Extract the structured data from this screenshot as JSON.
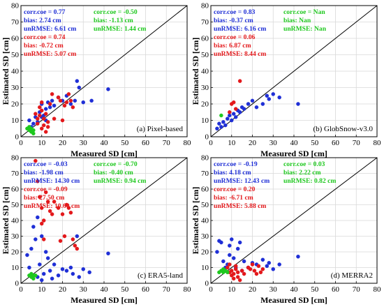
{
  "colors": {
    "blue": "#1f2fd6",
    "red": "#e3181b",
    "green": "#1ec81e",
    "frame": "#000000",
    "grid": "#d9d9d9"
  },
  "chart_data": [
    {
      "type": "scatter",
      "panel_label": "(a) Pixel-based",
      "xlabel": "Measured SD [cm]",
      "ylabel": "Estimated SD [cm]",
      "xlim": [
        0,
        80
      ],
      "ylim": [
        0,
        80
      ],
      "ticks": [
        "0",
        "10",
        "20",
        "30",
        "40",
        "50",
        "60",
        "70",
        "80"
      ],
      "grid": true,
      "one_to_one_line": true,
      "stats": {
        "blue": [
          "corr.coe = 0.77",
          "bias: 2.74 cm",
          "unRMSE: 6.61 cm"
        ],
        "green": [
          "corr.coe = -0.50",
          "bias: -1.13 cm",
          "unRMSE: 1.44 cm"
        ],
        "red": [
          "corr.coe = 0.74",
          "bias: -0.72 cm",
          "unRMSE: 5.07 cm"
        ]
      },
      "series": [
        {
          "color": "blue",
          "points": [
            [
              4,
              10
            ],
            [
              5,
              6
            ],
            [
              6,
              8
            ],
            [
              7,
              12
            ],
            [
              8,
              9
            ],
            [
              9,
              15
            ],
            [
              10,
              20
            ],
            [
              11,
              13
            ],
            [
              12,
              17
            ],
            [
              13,
              21
            ],
            [
              14,
              18
            ],
            [
              15,
              22
            ],
            [
              16,
              19
            ],
            [
              18,
              24
            ],
            [
              20,
              22
            ],
            [
              22,
              25
            ],
            [
              24,
              20
            ],
            [
              26,
              22
            ],
            [
              27,
              34
            ],
            [
              28,
              30
            ],
            [
              30,
              21
            ],
            [
              34,
              22
            ],
            [
              42,
              29
            ],
            [
              12,
              10
            ],
            [
              10,
              12
            ]
          ]
        },
        {
          "color": "red",
          "points": [
            [
              7,
              14
            ],
            [
              8,
              8
            ],
            [
              9,
              13
            ],
            [
              9,
              18
            ],
            [
              10,
              5
            ],
            [
              10,
              16
            ],
            [
              11,
              7
            ],
            [
              11,
              11
            ],
            [
              12,
              14
            ],
            [
              12,
              3
            ],
            [
              13,
              6
            ],
            [
              13,
              9
            ],
            [
              14,
              20
            ],
            [
              15,
              26
            ],
            [
              16,
              11
            ],
            [
              18,
              24
            ],
            [
              19,
              22
            ],
            [
              20,
              10
            ],
            [
              21,
              19
            ],
            [
              22,
              21
            ],
            [
              23,
              26
            ],
            [
              24,
              22
            ],
            [
              25,
              18
            ],
            [
              10,
              21
            ],
            [
              8,
              11
            ]
          ]
        },
        {
          "color": "green",
          "points": [
            [
              3,
              5
            ],
            [
              4,
              4
            ],
            [
              5,
              3
            ],
            [
              5,
              5
            ],
            [
              6,
              4
            ],
            [
              6,
              2
            ],
            [
              4,
              6
            ]
          ]
        }
      ]
    },
    {
      "type": "scatter",
      "panel_label": "(b) GlobSnow-v3.0",
      "xlabel": "Measured SD [cm]",
      "ylabel": "Estimated SD [cm]",
      "xlim": [
        0,
        80
      ],
      "ylim": [
        0,
        80
      ],
      "ticks": [
        "0",
        "10",
        "20",
        "30",
        "40",
        "50",
        "60",
        "70",
        "80"
      ],
      "grid": true,
      "one_to_one_line": true,
      "stats": {
        "blue": [
          "corr.coe = 0.83",
          "bias: -0.37 cm",
          "unRMSE: 6.16 cm"
        ],
        "green": [
          "corr.coe = Nan",
          "bias: Nan",
          "unRMSE: Nan"
        ],
        "red": [
          "corr.coe = 0.06",
          "bias: 6.87 cm",
          "unRMSE: 8.44 cm"
        ]
      },
      "series": [
        {
          "color": "blue",
          "points": [
            [
              3,
              5
            ],
            [
              4,
              8
            ],
            [
              6,
              9
            ],
            [
              7,
              7
            ],
            [
              8,
              11
            ],
            [
              9,
              13
            ],
            [
              10,
              10
            ],
            [
              11,
              14
            ],
            [
              12,
              12
            ],
            [
              13,
              16
            ],
            [
              14,
              15
            ],
            [
              15,
              18
            ],
            [
              16,
              17
            ],
            [
              18,
              20
            ],
            [
              20,
              22
            ],
            [
              22,
              18
            ],
            [
              25,
              20
            ],
            [
              27,
              25
            ],
            [
              28,
              23
            ],
            [
              30,
              26
            ],
            [
              33,
              24
            ],
            [
              42,
              20
            ],
            [
              5,
              6
            ]
          ]
        },
        {
          "color": "red",
          "points": [
            [
              9,
              15
            ],
            [
              10,
              20
            ],
            [
              11,
              21
            ],
            [
              12,
              17
            ],
            [
              14,
              34
            ]
          ]
        },
        {
          "color": "green",
          "points": [
            [
              5,
              13
            ]
          ]
        }
      ]
    },
    {
      "type": "scatter",
      "panel_label": "(c) ERA5-land",
      "xlabel": "Measured SD [cm]",
      "ylabel": "Estimated SD [cm]",
      "xlim": [
        0,
        80
      ],
      "ylim": [
        0,
        80
      ],
      "ticks": [
        "0",
        "10",
        "20",
        "30",
        "40",
        "50",
        "60",
        "70",
        "80"
      ],
      "grid": true,
      "one_to_one_line": true,
      "stats": {
        "blue": [
          "corr.coe = -0.03",
          "bias: -1.98 cm",
          "unRMSE: 14.30 cm"
        ],
        "green": [
          "corr.coe = -0.70",
          "bias: -0.40 cm",
          "unRMSE: 0.94 cm"
        ],
        "red": [
          "corr.coe = -0.09",
          "bias: 27.50 cm",
          "unRMSE: 10.60 cm"
        ]
      },
      "series": [
        {
          "color": "blue",
          "points": [
            [
              3,
              18
            ],
            [
              4,
              10
            ],
            [
              5,
              22
            ],
            [
              6,
              36
            ],
            [
              7,
              28
            ],
            [
              8,
              4
            ],
            [
              9,
              12
            ],
            [
              10,
              2
            ],
            [
              11,
              6
            ],
            [
              12,
              20
            ],
            [
              13,
              16
            ],
            [
              14,
              8
            ],
            [
              15,
              3
            ],
            [
              16,
              12
            ],
            [
              18,
              5
            ],
            [
              20,
              9
            ],
            [
              22,
              8
            ],
            [
              24,
              10
            ],
            [
              25,
              6
            ],
            [
              27,
              30
            ],
            [
              28,
              4
            ],
            [
              30,
              9
            ],
            [
              33,
              7
            ],
            [
              42,
              19
            ],
            [
              8,
              42
            ],
            [
              10,
              30
            ]
          ]
        },
        {
          "color": "red",
          "points": [
            [
              7,
              78
            ],
            [
              8,
              65
            ],
            [
              9,
              55
            ],
            [
              10,
              48
            ],
            [
              10,
              38
            ],
            [
              11,
              40
            ],
            [
              12,
              58
            ],
            [
              13,
              52
            ],
            [
              14,
              46
            ],
            [
              15,
              44
            ],
            [
              16,
              52
            ],
            [
              18,
              48
            ],
            [
              19,
              27
            ],
            [
              20,
              44
            ],
            [
              21,
              30
            ],
            [
              22,
              50
            ],
            [
              23,
              48
            ],
            [
              24,
              45
            ],
            [
              25,
              28
            ],
            [
              26,
              24
            ],
            [
              27,
              22
            ],
            [
              11,
              28
            ]
          ]
        },
        {
          "color": "green",
          "points": [
            [
              4,
              5
            ],
            [
              5,
              4
            ],
            [
              6,
              3
            ],
            [
              6,
              5
            ],
            [
              7,
              5
            ],
            [
              5,
              6
            ]
          ]
        }
      ]
    },
    {
      "type": "scatter",
      "panel_label": "(d) MERRA2",
      "xlabel": "Measured SD [cm]",
      "ylabel": "Estimated SD [cm]",
      "xlim": [
        0,
        80
      ],
      "ylim": [
        0,
        80
      ],
      "ticks": [
        "0",
        "10",
        "20",
        "30",
        "40",
        "50",
        "60",
        "70",
        "80"
      ],
      "grid": true,
      "one_to_one_line": true,
      "stats": {
        "blue": [
          "corr.coe = -0.19",
          "bias: 4.18 cm",
          "unRMSE: 12.43 cm"
        ],
        "green": [
          "corr.coe = 0.03",
          "bias: 2.22 cm",
          "unRMSE: 0.82 cm"
        ],
        "red": [
          "corr.coe = 0.20",
          "bias: -6.71 cm",
          "unRMSE: 5.88 cm"
        ]
      },
      "series": [
        {
          "color": "blue",
          "points": [
            [
              3,
              20
            ],
            [
              4,
              27
            ],
            [
              5,
              26
            ],
            [
              6,
              14
            ],
            [
              7,
              10
            ],
            [
              8,
              12
            ],
            [
              9,
              18
            ],
            [
              10,
              28
            ],
            [
              11,
              16
            ],
            [
              12,
              10
            ],
            [
              13,
              22
            ],
            [
              14,
              26
            ],
            [
              15,
              8
            ],
            [
              16,
              14
            ],
            [
              18,
              10
            ],
            [
              20,
              13
            ],
            [
              22,
              12
            ],
            [
              25,
              15
            ],
            [
              27,
              11
            ],
            [
              28,
              13
            ],
            [
              30,
              9
            ],
            [
              33,
              12
            ],
            [
              42,
              17
            ],
            [
              9,
              24
            ]
          ]
        },
        {
          "color": "red",
          "points": [
            [
              8,
              10
            ],
            [
              9,
              12
            ],
            [
              10,
              5
            ],
            [
              10,
              8
            ],
            [
              11,
              6
            ],
            [
              11,
              3
            ],
            [
              12,
              9
            ],
            [
              12,
              11
            ],
            [
              13,
              7
            ],
            [
              14,
              2
            ],
            [
              15,
              8
            ],
            [
              16,
              6
            ],
            [
              18,
              10
            ],
            [
              19,
              9
            ],
            [
              20,
              12
            ],
            [
              21,
              8
            ],
            [
              22,
              6
            ],
            [
              23,
              11
            ],
            [
              24,
              7
            ],
            [
              25,
              9
            ],
            [
              9,
              7
            ],
            [
              13,
              4
            ]
          ]
        },
        {
          "color": "green",
          "points": [
            [
              4,
              7
            ],
            [
              5,
              8
            ],
            [
              6,
              7
            ],
            [
              6,
              9
            ],
            [
              7,
              8
            ],
            [
              8,
              7
            ]
          ]
        }
      ]
    }
  ]
}
